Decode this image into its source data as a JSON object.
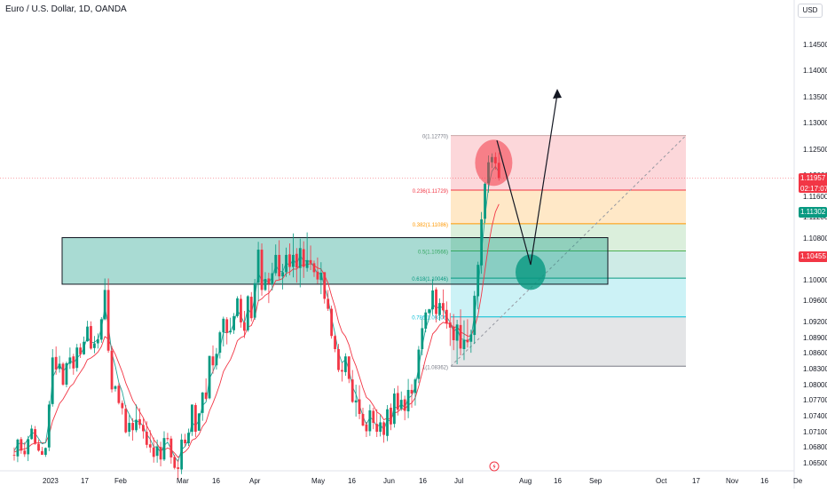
{
  "header": {
    "title": "Euro / U.S. Dollar, 1D, OANDA",
    "currency": "USD"
  },
  "price_tags": [
    {
      "value": "1.11957",
      "sub": "02:17:07",
      "color": "#f23645",
      "price": 1.11957
    },
    {
      "value": "1.11302",
      "color": "#089981",
      "price": 1.11302
    },
    {
      "value": "1.10455",
      "color": "#f23645",
      "price": 1.10455
    }
  ],
  "chart_data": {
    "type": "candlestick",
    "title": "Euro / U.S. Dollar, 1D, OANDA",
    "y_axis": {
      "range": [
        1.062,
        1.151
      ],
      "ticks": [
        "1.14500",
        "1.14000",
        "1.13500",
        "1.13000",
        "1.12500",
        "1.12000",
        "1.11600",
        "1.11200",
        "1.10800",
        "1.10400",
        "1.10000",
        "1.09600",
        "1.09200",
        "1.08900",
        "1.08600",
        "1.08300",
        "1.08000",
        "1.07700",
        "1.07400",
        "1.07100",
        "1.06800",
        "1.06500"
      ]
    },
    "x_axis": {
      "ticks": [
        "2023",
        "17",
        "Feb",
        "Mar",
        "16",
        "Apr",
        "May",
        "16",
        "Jun",
        "16",
        "Jul",
        "Aug",
        "16",
        "Sep",
        "Oct",
        "17",
        "Nov",
        "16",
        "De"
      ]
    },
    "candles": [
      [
        1.0667,
        1.0681,
        1.0656,
        1.0666
      ],
      [
        1.0664,
        1.0698,
        1.0653,
        1.0696
      ],
      [
        1.0697,
        1.0701,
        1.0669,
        1.0675
      ],
      [
        1.0675,
        1.0691,
        1.0663,
        1.0668
      ],
      [
        1.0668,
        1.0703,
        1.0655,
        1.0697
      ],
      [
        1.0697,
        1.0724,
        1.0696,
        1.0717
      ],
      [
        1.0716,
        1.0722,
        1.0686,
        1.0688
      ],
      [
        1.0688,
        1.0696,
        1.0673,
        1.0675
      ],
      [
        1.0674,
        1.0682,
        1.0667,
        1.0667
      ],
      [
        1.0667,
        1.0681,
        1.0663,
        1.068
      ],
      [
        1.0681,
        1.077,
        1.0674,
        1.0763
      ],
      [
        1.0764,
        1.0869,
        1.0759,
        1.0853
      ],
      [
        1.0854,
        1.0874,
        1.082,
        1.083
      ],
      [
        1.0831,
        1.0856,
        1.0824,
        1.0841
      ],
      [
        1.0841,
        1.0844,
        1.0799,
        1.0801
      ],
      [
        1.0801,
        1.0845,
        1.0796,
        1.0842
      ],
      [
        1.0841,
        1.0872,
        1.0831,
        1.0853
      ],
      [
        1.0855,
        1.086,
        1.082,
        1.0832
      ],
      [
        1.0833,
        1.0879,
        1.0826,
        1.0872
      ],
      [
        1.0872,
        1.088,
        1.0852,
        1.0859
      ],
      [
        1.0859,
        1.0893,
        1.0858,
        1.0883
      ],
      [
        1.0884,
        1.0923,
        1.0883,
        1.0912
      ],
      [
        1.0913,
        1.0922,
        1.0868,
        1.087
      ],
      [
        1.0871,
        1.0894,
        1.0861,
        1.088
      ],
      [
        1.088,
        1.0899,
        1.087,
        1.0888
      ],
      [
        1.0887,
        1.093,
        1.0881,
        1.0926
      ],
      [
        1.0926,
        1.1004,
        1.0924,
        1.0982
      ],
      [
        1.0982,
        1.1004,
        1.0862,
        1.0866
      ],
      [
        1.0866,
        1.0875,
        1.0786,
        1.0792
      ],
      [
        1.0793,
        1.08,
        1.0788,
        1.0798
      ],
      [
        1.0799,
        1.0804,
        1.0763,
        1.0766
      ],
      [
        1.0766,
        1.0771,
        1.0744,
        1.0756
      ],
      [
        1.0755,
        1.0762,
        1.0708,
        1.071
      ],
      [
        1.0711,
        1.0743,
        1.0702,
        1.0728
      ],
      [
        1.0728,
        1.0737,
        1.0694,
        1.0714
      ],
      [
        1.0714,
        1.0763,
        1.071,
        1.0734
      ],
      [
        1.0735,
        1.0756,
        1.0717,
        1.0724
      ],
      [
        1.0724,
        1.0736,
        1.0698,
        1.0712
      ],
      [
        1.0711,
        1.0731,
        1.068,
        1.0686
      ],
      [
        1.0687,
        1.0714,
        1.0671,
        1.0681
      ],
      [
        1.0681,
        1.07,
        1.0652,
        1.0663
      ],
      [
        1.0665,
        1.0696,
        1.0652,
        1.0683
      ],
      [
        1.0682,
        1.0692,
        1.0645,
        1.0658
      ],
      [
        1.0658,
        1.0712,
        1.0655,
        1.0699
      ],
      [
        1.0699,
        1.0709,
        1.0693,
        1.0697
      ],
      [
        1.0698,
        1.0703,
        1.065,
        1.0662
      ],
      [
        1.0663,
        1.0667,
        1.0639,
        1.0642
      ],
      [
        1.0643,
        1.0658,
        1.062,
        1.064
      ],
      [
        1.0639,
        1.0707,
        1.063,
        1.0696
      ],
      [
        1.0696,
        1.0707,
        1.0682,
        1.0689
      ],
      [
        1.0689,
        1.0717,
        1.0684,
        1.0709
      ],
      [
        1.0711,
        1.0763,
        1.0703,
        1.0763
      ],
      [
        1.0762,
        1.0766,
        1.0701,
        1.0711
      ],
      [
        1.0713,
        1.0747,
        1.0713,
        1.0746
      ],
      [
        1.0747,
        1.0787,
        1.0732,
        1.0786
      ],
      [
        1.0786,
        1.0813,
        1.0771,
        1.0774
      ],
      [
        1.0775,
        1.0856,
        1.0773,
        1.0856
      ],
      [
        1.0855,
        1.0876,
        1.0822,
        1.0838
      ],
      [
        1.0838,
        1.0871,
        1.083,
        1.086
      ],
      [
        1.0862,
        1.0904,
        1.0851,
        1.0901
      ],
      [
        1.0901,
        1.0931,
        1.0874,
        1.0927
      ],
      [
        1.0926,
        1.093,
        1.0878,
        1.09
      ],
      [
        1.0901,
        1.0929,
        1.0897,
        1.0904
      ],
      [
        1.0905,
        1.0938,
        1.0898,
        1.0932
      ],
      [
        1.0932,
        1.097,
        1.0929,
        1.0966
      ],
      [
        1.0965,
        1.0973,
        1.091,
        1.092
      ],
      [
        1.092,
        1.0942,
        1.089,
        1.0904
      ],
      [
        1.0905,
        1.0972,
        1.0902,
        1.097
      ],
      [
        1.0969,
        1.0978,
        1.0922,
        1.0928
      ],
      [
        1.0929,
        1.1003,
        1.0925,
        1.0995
      ],
      [
        1.0996,
        1.1074,
        1.0961,
        1.1059
      ],
      [
        1.1059,
        1.1071,
        1.0971,
        1.0982
      ],
      [
        1.0982,
        1.1016,
        1.098,
        1.1003
      ],
      [
        1.1004,
        1.1015,
        1.0957,
        1.0994
      ],
      [
        1.0993,
        1.1034,
        1.0981,
        1.1014
      ],
      [
        1.1014,
        1.1069,
        1.1009,
        1.1049
      ],
      [
        1.1049,
        1.1077,
        1.1001,
        1.1008
      ],
      [
        1.1008,
        1.1032,
        1.0983,
        1.1016
      ],
      [
        1.1016,
        1.1063,
        1.1007,
        1.1049
      ],
      [
        1.105,
        1.1071,
        1.101,
        1.1026
      ],
      [
        1.1026,
        1.109,
        1.1006,
        1.1049
      ],
      [
        1.1051,
        1.1062,
        1.0996,
        1.1025
      ],
      [
        1.1024,
        1.108,
        1.0987,
        1.1062
      ],
      [
        1.106,
        1.1075,
        1.1005,
        1.1026
      ],
      [
        1.1024,
        1.1092,
        1.1017,
        1.1039
      ],
      [
        1.1039,
        1.1067,
        1.102,
        1.1033
      ],
      [
        1.1033,
        1.1038,
        1.1007,
        1.1016
      ],
      [
        1.1017,
        1.1044,
        1.0994,
        1.1002
      ],
      [
        1.1001,
        1.1035,
        1.0974,
        1.1015
      ],
      [
        1.1016,
        1.1016,
        1.0956,
        1.0965
      ],
      [
        1.0965,
        1.0982,
        1.0942,
        1.0946
      ],
      [
        1.0946,
        1.0952,
        1.0889,
        1.0894
      ],
      [
        1.0894,
        1.0897,
        1.0863,
        1.0869
      ],
      [
        1.0869,
        1.0879,
        1.0825,
        1.0829
      ],
      [
        1.0829,
        1.0843,
        1.0807,
        1.0826
      ],
      [
        1.0825,
        1.0861,
        1.0818,
        1.0855
      ],
      [
        1.0855,
        1.0855,
        1.0804,
        1.0812
      ],
      [
        1.0811,
        1.0829,
        1.0766,
        1.0768
      ],
      [
        1.0767,
        1.0801,
        1.074,
        1.0771
      ],
      [
        1.0773,
        1.08,
        1.0735,
        1.0745
      ],
      [
        1.0745,
        1.0757,
        1.0721,
        1.0723
      ],
      [
        1.0725,
        1.073,
        1.0701,
        1.0712
      ],
      [
        1.0712,
        1.0763,
        1.0703,
        1.0752
      ],
      [
        1.0751,
        1.0757,
        1.0716,
        1.0728
      ],
      [
        1.0726,
        1.0754,
        1.0701,
        1.0711
      ],
      [
        1.0711,
        1.0743,
        1.0702,
        1.0729
      ],
      [
        1.0729,
        1.0732,
        1.069,
        1.0705
      ],
      [
        1.0703,
        1.0762,
        1.0693,
        1.0754
      ],
      [
        1.0757,
        1.0765,
        1.0714,
        1.0725
      ],
      [
        1.0726,
        1.0794,
        1.0719,
        1.0784
      ],
      [
        1.0785,
        1.0799,
        1.0742,
        1.0753
      ],
      [
        1.0755,
        1.0788,
        1.0751,
        1.0772
      ],
      [
        1.0773,
        1.078,
        1.0733,
        1.0751
      ],
      [
        1.075,
        1.0812,
        1.0737,
        1.0791
      ],
      [
        1.0791,
        1.0802,
        1.0757,
        1.0784
      ],
      [
        1.0785,
        1.0814,
        1.0761,
        1.0811
      ],
      [
        1.0812,
        1.0875,
        1.0804,
        1.0868
      ],
      [
        1.0869,
        1.0927,
        1.0857,
        1.0909
      ],
      [
        1.0908,
        1.0945,
        1.0901,
        1.0939
      ],
      [
        1.0938,
        1.0946,
        1.0936,
        1.0945
      ],
      [
        1.0945,
        1.1003,
        1.0934,
        1.0981
      ],
      [
        1.0983,
        1.0987,
        1.092,
        1.0936
      ],
      [
        1.0934,
        1.0966,
        1.0923,
        1.0957
      ],
      [
        1.0957,
        1.0983,
        1.0927,
        1.0943
      ],
      [
        1.0944,
        1.096,
        1.0908,
        1.0918
      ],
      [
        1.092,
        1.0938,
        1.0875,
        1.091
      ],
      [
        1.0912,
        1.0936,
        1.0867,
        1.0886
      ],
      [
        1.0885,
        1.0925,
        1.084,
        1.0916
      ],
      [
        1.0915,
        1.0945,
        1.0857,
        1.087
      ],
      [
        1.0869,
        1.0924,
        1.0848,
        1.0886
      ],
      [
        1.0887,
        1.0926,
        1.0872,
        1.0882
      ],
      [
        1.0883,
        1.0906,
        1.0862,
        1.0897
      ],
      [
        1.0896,
        1.098,
        1.0879,
        1.0971
      ],
      [
        1.097,
        1.1036,
        1.0945,
        1.103
      ],
      [
        1.1029,
        1.1131,
        1.1013,
        1.1117
      ],
      [
        1.1118,
        1.1188,
        1.111,
        1.1185
      ],
      [
        1.1186,
        1.1239,
        1.1168,
        1.1226
      ],
      [
        1.1226,
        1.1243,
        1.1215,
        1.1236
      ],
      [
        1.1236,
        1.1245,
        1.1212,
        1.1224
      ],
      [
        1.1225,
        1.1245,
        1.1191,
        1.1196
      ]
    ],
    "ema_fast": [
      1.0674,
      1.0687,
      1.069,
      1.0687,
      1.0698,
      1.0709,
      1.0708,
      1.0698,
      1.0688,
      1.069,
      1.0732,
      1.0814,
      1.0829,
      1.084,
      1.0826,
      1.0835,
      1.0847,
      1.0842,
      1.0852,
      1.0859,
      1.0871,
      1.0893,
      1.0881,
      1.0882,
      1.0887,
      1.0908,
      1.0949,
      1.0914,
      1.0862,
      1.0836,
      1.0805,
      1.0787,
      1.0757,
      1.0744,
      1.0731,
      1.0732,
      1.0729,
      1.0722,
      1.0706,
      1.0697,
      1.0682,
      1.0682,
      1.0671,
      1.0685,
      1.0691,
      1.0678,
      1.0663,
      1.0654,
      1.0677,
      1.0683,
      1.0696,
      1.0729,
      1.0722,
      1.0733,
      1.0761,
      1.0768,
      1.0813,
      1.0826,
      1.0843,
      1.0871,
      1.0901,
      1.09,
      1.0903,
      1.0918,
      1.0943,
      1.0932,
      1.0918,
      1.0946,
      1.0937,
      1.0967,
      1.1015,
      1.0999,
      1.1001,
      1.0997,
      1.1006,
      1.1029,
      1.1018,
      1.1017,
      1.1034,
      1.1029,
      1.104,
      1.1032,
      1.1048,
      1.1037,
      1.1038,
      1.1036,
      1.1025,
      1.1013,
      1.1014,
      1.0988,
      1.0966,
      1.0929,
      1.0898,
      1.0862,
      1.0843,
      1.0849,
      1.083,
      1.0797,
      1.0783,
      1.0762,
      1.0741,
      1.0725,
      1.0739,
      1.0733,
      1.0721,
      1.0725,
      1.0714,
      1.0735,
      1.073,
      1.0759,
      1.0756,
      1.0764,
      1.0757,
      1.0775,
      1.078,
      1.0797,
      1.0835,
      1.0874,
      1.0908,
      1.0928,
      1.0956,
      1.0946,
      1.0951,
      1.0947,
      1.0931,
      1.092,
      1.0902,
      1.0909,
      1.0889,
      1.0887,
      1.0884,
      1.0891,
      1.0934,
      1.0984,
      1.1053,
      1.1123,
      1.1177,
      1.1209,
      1.1218,
      1.1207
    ],
    "ema_slow": [
      1.0672,
      1.0675,
      1.0677,
      1.0678,
      1.0681,
      1.0687,
      1.0689,
      1.069,
      1.069,
      1.069,
      1.0705,
      1.0731,
      1.0748,
      1.0765,
      1.0773,
      1.0785,
      1.0797,
      1.0803,
      1.0815,
      1.0825,
      1.0835,
      1.0849,
      1.0852,
      1.0857,
      1.0863,
      1.0874,
      1.0893,
      1.0888,
      1.0872,
      1.0859,
      1.0842,
      1.0825,
      1.0804,
      1.0788,
      1.0771,
      1.076,
      1.0749,
      1.0738,
      1.0723,
      1.071,
      1.0696,
      1.0688,
      1.0677,
      1.0676,
      1.068,
      1.0677,
      1.067,
      1.0662,
      1.0669,
      1.0673,
      1.068,
      1.0695,
      1.0698,
      1.0706,
      1.0721,
      1.073,
      1.0751,
      1.0766,
      1.0783,
      1.0803,
      1.0826,
      1.0838,
      1.0849,
      1.0865,
      1.0885,
      1.0891,
      1.0894,
      1.0911,
      1.0914,
      1.093,
      1.0961,
      1.0965,
      1.0972,
      1.0976,
      1.0985,
      1.1,
      1.1001,
      1.1004,
      1.1014,
      1.1016,
      1.1022,
      1.1022,
      1.1029,
      1.1029,
      1.1031,
      1.1032,
      1.1029,
      1.1024,
      1.1022,
      1.101,
      1.0995,
      1.0971,
      1.0949,
      1.0921,
      1.0902,
      1.0893,
      1.0877,
      1.0853,
      1.0837,
      1.0816,
      1.0795,
      1.0777,
      1.0771,
      1.0761,
      1.0749,
      1.0744,
      1.0734,
      1.0737,
      1.0735,
      1.0747,
      1.0749,
      1.0755,
      1.0754,
      1.0762,
      1.0766,
      1.0776,
      1.0798,
      1.0824,
      1.0851,
      1.0874,
      1.0898,
      1.0905,
      1.0915,
      1.092,
      1.0918,
      1.0918,
      1.091,
      1.0912,
      1.0902,
      1.0898,
      1.0894,
      1.0894,
      1.091,
      1.0934,
      1.0973,
      1.1021,
      1.1067,
      1.1104,
      1.1131,
      1.1146
    ],
    "fibonacci": {
      "levels": [
        {
          "label": "0(1.12770)",
          "price": 1.1277,
          "band_to": 1.11729,
          "fill": "rgba(242,54,69,0.2)",
          "line": "#c9a6a6",
          "text_color": "#787b86"
        },
        {
          "label": "0.236(1.11729)",
          "price": 1.11729,
          "band_to": 1.11086,
          "fill": "rgba(255,152,0,0.22)",
          "line": "#f23645",
          "text_color": "#f23645"
        },
        {
          "label": "0.382(1.11086)",
          "price": 1.11086,
          "band_to": 1.10566,
          "fill": "rgba(76,175,80,0.2)",
          "line": "#ff9800",
          "text_color": "#ff9800"
        },
        {
          "label": "0.5(1.10566)",
          "price": 1.10566,
          "band_to": 1.10046,
          "fill": "rgba(8,153,129,0.2)",
          "line": "#4caf50",
          "text_color": "#4caf50"
        },
        {
          "label": "0.618(1.10046)",
          "price": 1.10046,
          "band_to": 1.09306,
          "fill": "rgba(0,188,212,0.2)",
          "line": "#089981",
          "text_color": "#089981"
        },
        {
          "label": "0.786(1.09306)",
          "price": 1.09306,
          "band_to": 1.08362,
          "fill": "rgba(120,123,134,0.2)",
          "line": "#00bcd4",
          "text_color": "#00bcd4"
        },
        {
          "label": "1(1.08362)",
          "price": 1.08362,
          "band_to": null,
          "fill": null,
          "line": "#787b86",
          "text_color": "#787b86"
        }
      ]
    },
    "zone": {
      "price_top": 1.1082,
      "price_bottom": 1.0993
    },
    "colors": {
      "up": "#089981",
      "down": "#f23645",
      "ema_fast": "#26a69a",
      "ema_slow": "#f23645",
      "zone_fill": "rgba(8,153,129,0.35)",
      "circle_red": "rgba(242,54,69,0.55)",
      "circle_green": "rgba(8,153,129,0.8)",
      "arrow": "#131722"
    },
    "current_price": 1.11957,
    "grid": false
  }
}
